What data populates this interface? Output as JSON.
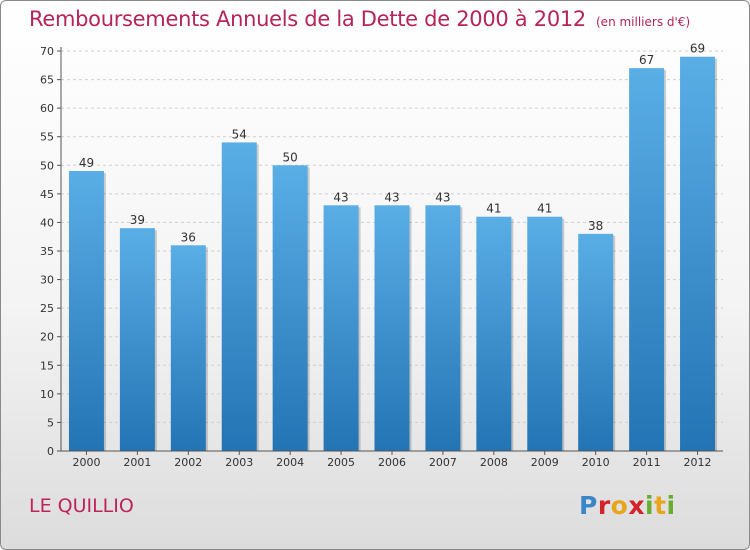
{
  "header": {
    "title": "Remboursements Annuels de la Dette de 2000 à 2012",
    "subtitle": "(en milliers d'€)"
  },
  "footer": {
    "commune": "LE QUILLIO",
    "logo_text": "Proxiti"
  },
  "colors": {
    "title": "#b5245a",
    "bar_top": "#5aaee6",
    "bar_bottom": "#2374b4"
  },
  "chart_data": {
    "type": "bar",
    "title": "Remboursements Annuels de la Dette de 2000 à 2012",
    "subtitle": "(en milliers d'€)",
    "categories": [
      "2000",
      "2001",
      "2002",
      "2003",
      "2004",
      "2005",
      "2006",
      "2007",
      "2008",
      "2009",
      "2010",
      "2011",
      "2012"
    ],
    "values": [
      49,
      39,
      36,
      54,
      50,
      43,
      43,
      43,
      41,
      41,
      38,
      67,
      69
    ],
    "ylim": [
      0,
      70
    ],
    "yticks": [
      0,
      5,
      10,
      15,
      20,
      25,
      30,
      35,
      40,
      45,
      50,
      55,
      60,
      65,
      70
    ],
    "grid": true,
    "data_labels": true
  }
}
